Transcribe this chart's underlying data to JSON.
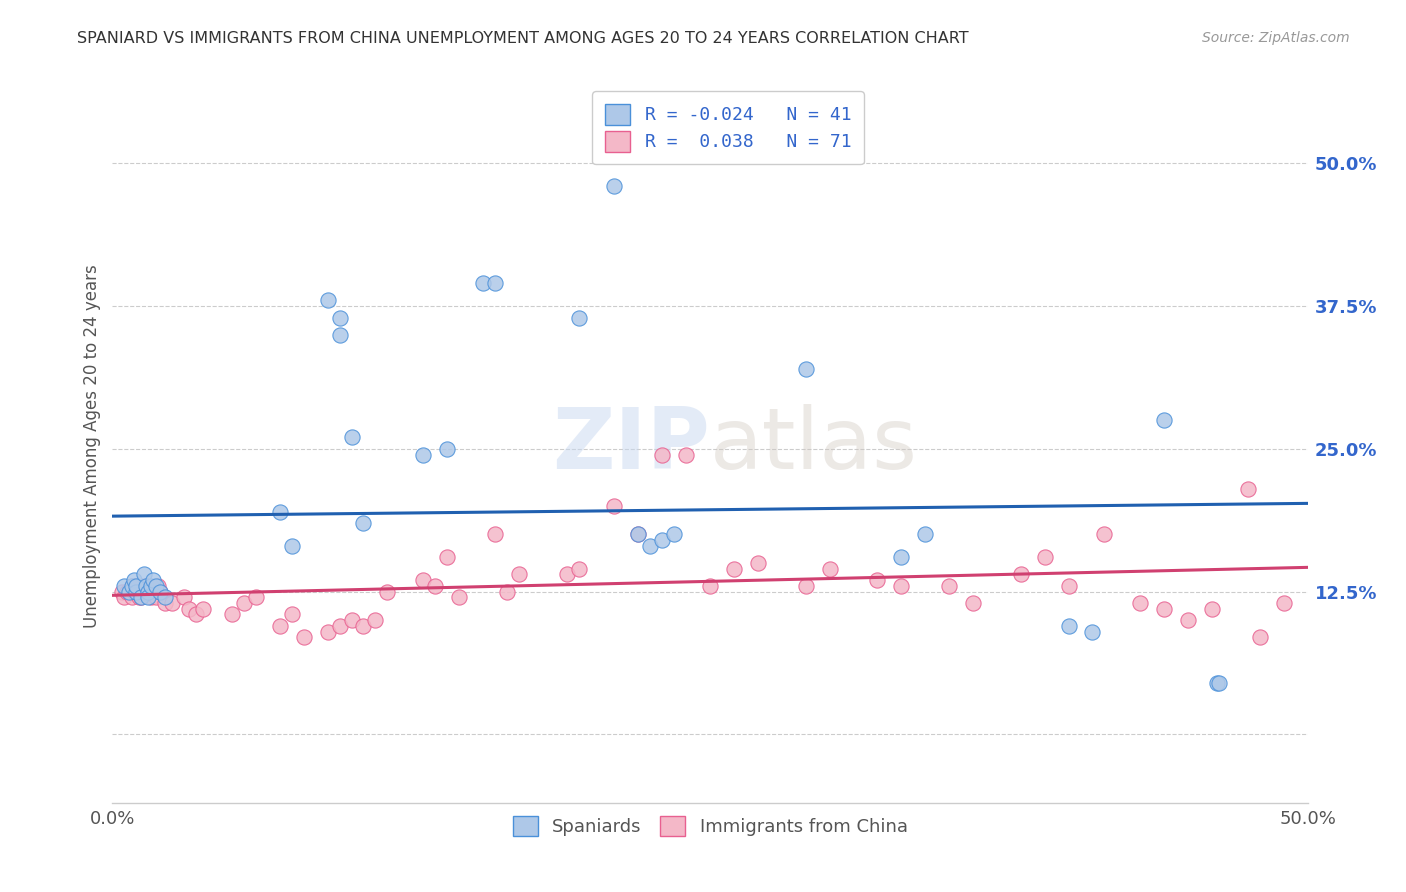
{
  "title": "SPANIARD VS IMMIGRANTS FROM CHINA UNEMPLOYMENT AMONG AGES 20 TO 24 YEARS CORRELATION CHART",
  "source": "Source: ZipAtlas.com",
  "ylabel": "Unemployment Among Ages 20 to 24 years",
  "xlim": [
    0.0,
    0.5
  ],
  "ylim": [
    -0.06,
    0.565
  ],
  "xticks": [
    0.0,
    0.1,
    0.2,
    0.3,
    0.4,
    0.5
  ],
  "xticklabels": [
    "0.0%",
    "",
    "",
    "",
    "",
    "50.0%"
  ],
  "ytick_positions": [
    0.0,
    0.125,
    0.25,
    0.375,
    0.5
  ],
  "ytick_labels": [
    "",
    "12.5%",
    "25.0%",
    "37.5%",
    "50.0%"
  ],
  "spaniards_R": "-0.024",
  "spaniards_N": "41",
  "immigrants_R": "0.038",
  "immigrants_N": "71",
  "blue_fill": "#aec8e8",
  "pink_fill": "#f4b8c8",
  "blue_edge": "#4a90d9",
  "pink_edge": "#e86090",
  "blue_line_color": "#2060b0",
  "pink_line_color": "#d04070",
  "watermark_color": "#ddeeff",
  "spaniards_x": [
    0.005,
    0.007,
    0.008,
    0.009,
    0.01,
    0.01,
    0.012,
    0.013,
    0.014,
    0.015,
    0.015,
    0.016,
    0.017,
    0.018,
    0.02,
    0.022,
    0.07,
    0.075,
    0.09,
    0.095,
    0.095,
    0.1,
    0.105,
    0.13,
    0.14,
    0.155,
    0.16,
    0.195,
    0.21,
    0.22,
    0.225,
    0.23,
    0.235,
    0.29,
    0.33,
    0.34,
    0.4,
    0.41,
    0.44,
    0.462,
    0.463
  ],
  "spaniards_y": [
    0.13,
    0.125,
    0.13,
    0.135,
    0.125,
    0.13,
    0.12,
    0.14,
    0.13,
    0.125,
    0.12,
    0.13,
    0.135,
    0.13,
    0.125,
    0.12,
    0.195,
    0.165,
    0.38,
    0.35,
    0.365,
    0.26,
    0.185,
    0.245,
    0.25,
    0.395,
    0.395,
    0.365,
    0.48,
    0.175,
    0.165,
    0.17,
    0.175,
    0.32,
    0.155,
    0.175,
    0.095,
    0.09,
    0.275,
    0.045,
    0.045
  ],
  "immigrants_x": [
    0.004,
    0.005,
    0.006,
    0.007,
    0.008,
    0.008,
    0.009,
    0.01,
    0.01,
    0.011,
    0.012,
    0.012,
    0.013,
    0.014,
    0.015,
    0.016,
    0.017,
    0.018,
    0.019,
    0.02,
    0.022,
    0.025,
    0.03,
    0.032,
    0.035,
    0.038,
    0.05,
    0.055,
    0.06,
    0.07,
    0.075,
    0.08,
    0.09,
    0.095,
    0.1,
    0.105,
    0.11,
    0.115,
    0.13,
    0.135,
    0.14,
    0.145,
    0.16,
    0.165,
    0.17,
    0.19,
    0.195,
    0.21,
    0.22,
    0.23,
    0.24,
    0.25,
    0.26,
    0.27,
    0.29,
    0.3,
    0.32,
    0.33,
    0.35,
    0.36,
    0.38,
    0.39,
    0.4,
    0.415,
    0.43,
    0.44,
    0.45,
    0.46,
    0.475,
    0.48,
    0.49
  ],
  "immigrants_y": [
    0.125,
    0.12,
    0.125,
    0.125,
    0.13,
    0.12,
    0.125,
    0.13,
    0.125,
    0.12,
    0.13,
    0.12,
    0.125,
    0.13,
    0.13,
    0.12,
    0.125,
    0.12,
    0.13,
    0.125,
    0.115,
    0.115,
    0.12,
    0.11,
    0.105,
    0.11,
    0.105,
    0.115,
    0.12,
    0.095,
    0.105,
    0.085,
    0.09,
    0.095,
    0.1,
    0.095,
    0.1,
    0.125,
    0.135,
    0.13,
    0.155,
    0.12,
    0.175,
    0.125,
    0.14,
    0.14,
    0.145,
    0.2,
    0.175,
    0.245,
    0.245,
    0.13,
    0.145,
    0.15,
    0.13,
    0.145,
    0.135,
    0.13,
    0.13,
    0.115,
    0.14,
    0.155,
    0.13,
    0.175,
    0.115,
    0.11,
    0.1,
    0.11,
    0.215,
    0.085,
    0.115
  ]
}
